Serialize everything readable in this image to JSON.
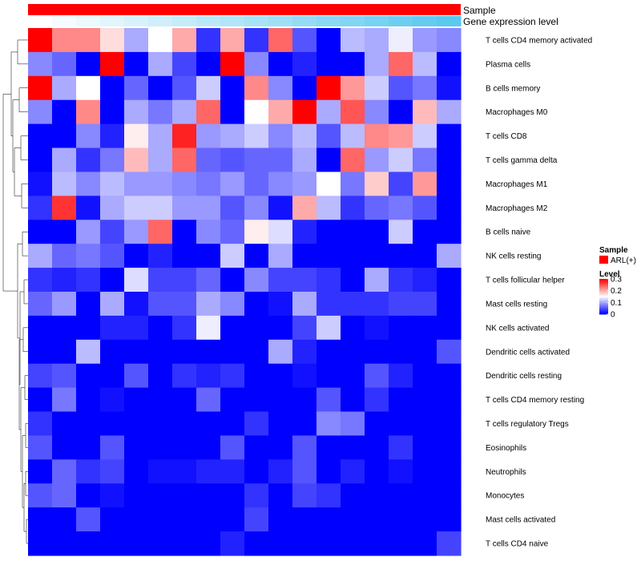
{
  "chart_data": {
    "type": "heatmap",
    "annotation_tracks": [
      {
        "name": "Sample",
        "color": "#ff0000"
      },
      {
        "name": "Gene expression level",
        "gradient": [
          "#ffffff",
          "#5bc8ef"
        ]
      }
    ],
    "rows": [
      "T cells CD4 memory activated",
      "Plasma cells",
      "B cells memory",
      "Macrophages M0",
      "T cells CD8",
      "T cells gamma delta",
      "Macrophages M1",
      "Macrophages M2",
      "B cells naive",
      "NK cells resting",
      "T cells follicular helper",
      "Mast cells resting",
      "NK cells activated",
      "Dendritic cells activated",
      "Dendritic cells resting",
      "T cells CD4 memory resting",
      "T cells regulatory  Tregs",
      "Eosinophils",
      "Neutrophils",
      "Monocytes",
      "Mast cells activated",
      "T cells CD4 naive"
    ],
    "n_columns": 18,
    "values": [
      [
        0.3,
        0.22,
        0.22,
        0.17,
        0.1,
        0.15,
        0.2,
        0.03,
        0.2,
        0.03,
        0.24,
        0.05,
        0.0,
        0.11,
        0.1,
        0.14,
        0.09,
        0.08
      ],
      [
        0.08,
        0.06,
        0.0,
        0.3,
        0.0,
        0.1,
        0.04,
        0.0,
        0.3,
        0.08,
        0.0,
        0.02,
        0.0,
        0.0,
        0.1,
        0.24,
        0.11,
        0.0
      ],
      [
        0.3,
        0.1,
        0.15,
        0.0,
        0.06,
        0.0,
        0.05,
        0.12,
        0.0,
        0.22,
        0.08,
        0.0,
        0.3,
        0.21,
        0.12,
        0.05,
        0.07,
        0.01
      ],
      [
        0.08,
        0.0,
        0.22,
        0.0,
        0.1,
        0.07,
        0.1,
        0.24,
        0.0,
        0.15,
        0.2,
        0.3,
        0.1,
        0.25,
        0.08,
        0.0,
        0.19,
        0.1
      ],
      [
        0.0,
        0.0,
        0.08,
        0.02,
        0.16,
        0.1,
        0.28,
        0.09,
        0.1,
        0.12,
        0.08,
        0.11,
        0.05,
        0.11,
        0.22,
        0.21,
        0.12,
        0.0
      ],
      [
        0.0,
        0.1,
        0.03,
        0.07,
        0.19,
        0.1,
        0.24,
        0.06,
        0.05,
        0.06,
        0.06,
        0.1,
        0.0,
        0.24,
        0.09,
        0.12,
        0.07,
        0.0
      ],
      [
        0.01,
        0.11,
        0.08,
        0.11,
        0.09,
        0.09,
        0.08,
        0.07,
        0.09,
        0.06,
        0.08,
        0.09,
        0.15,
        0.07,
        0.18,
        0.04,
        0.21,
        0.0
      ],
      [
        0.03,
        0.27,
        0.01,
        0.1,
        0.12,
        0.12,
        0.09,
        0.09,
        0.05,
        0.08,
        0.01,
        0.2,
        0.11,
        0.03,
        0.06,
        0.07,
        0.05,
        0.0
      ],
      [
        0.0,
        0.0,
        0.09,
        0.04,
        0.09,
        0.24,
        0.0,
        0.08,
        0.06,
        0.16,
        0.13,
        0.02,
        0.0,
        0.0,
        0.0,
        0.12,
        0.0,
        0.0
      ],
      [
        0.1,
        0.06,
        0.07,
        0.05,
        0.0,
        0.02,
        0.0,
        0.0,
        0.12,
        0.0,
        0.1,
        0.0,
        0.0,
        0.0,
        0.0,
        0.0,
        0.0,
        0.1
      ],
      [
        0.03,
        0.02,
        0.03,
        0.0,
        0.13,
        0.04,
        0.04,
        0.06,
        0.0,
        0.08,
        0.04,
        0.04,
        0.03,
        0.0,
        0.1,
        0.03,
        0.02,
        0.0
      ],
      [
        0.06,
        0.09,
        0.0,
        0.1,
        0.01,
        0.05,
        0.05,
        0.1,
        0.08,
        0.0,
        0.01,
        0.1,
        0.03,
        0.03,
        0.03,
        0.04,
        0.04,
        0.0
      ],
      [
        0.0,
        0.0,
        0.0,
        0.02,
        0.02,
        0.0,
        0.03,
        0.14,
        0.0,
        0.0,
        0.0,
        0.04,
        0.12,
        0.0,
        0.01,
        0.0,
        0.0,
        0.0
      ],
      [
        0.0,
        0.0,
        0.11,
        0.0,
        0.0,
        0.0,
        0.0,
        0.0,
        0.0,
        0.0,
        0.1,
        0.02,
        0.0,
        0.0,
        0.0,
        0.0,
        0.0,
        0.05
      ],
      [
        0.04,
        0.05,
        0.0,
        0.0,
        0.05,
        0.0,
        0.03,
        0.02,
        0.03,
        0.0,
        0.0,
        0.01,
        0.0,
        0.0,
        0.05,
        0.02,
        0.0,
        0.0
      ],
      [
        0.0,
        0.07,
        0.0,
        0.01,
        0.0,
        0.0,
        0.0,
        0.06,
        0.0,
        0.0,
        0.0,
        0.0,
        0.05,
        0.0,
        0.03,
        0.0,
        0.0,
        0.0
      ],
      [
        0.03,
        0.0,
        0.0,
        0.0,
        0.0,
        0.0,
        0.0,
        0.0,
        0.0,
        0.03,
        0.0,
        0.0,
        0.08,
        0.07,
        0.0,
        0.0,
        0.0,
        0.0
      ],
      [
        0.05,
        0.0,
        0.0,
        0.05,
        0.0,
        0.0,
        0.0,
        0.0,
        0.05,
        0.0,
        0.0,
        0.05,
        0.0,
        0.0,
        0.0,
        0.03,
        0.0,
        0.0
      ],
      [
        0.0,
        0.06,
        0.03,
        0.04,
        0.0,
        0.01,
        0.01,
        0.02,
        0.02,
        0.0,
        0.02,
        0.05,
        0.0,
        0.02,
        0.0,
        0.01,
        0.0,
        0.0
      ],
      [
        0.05,
        0.06,
        0.0,
        0.01,
        0.0,
        0.0,
        0.0,
        0.0,
        0.0,
        0.03,
        0.0,
        0.04,
        0.03,
        0.0,
        0.0,
        0.0,
        0.0,
        0.0
      ],
      [
        0.0,
        0.0,
        0.05,
        0.0,
        0.0,
        0.0,
        0.0,
        0.0,
        0.0,
        0.04,
        0.0,
        0.0,
        0.0,
        0.0,
        0.0,
        0.0,
        0.0,
        0.0
      ],
      [
        0.0,
        0.0,
        0.0,
        0.0,
        0.0,
        0.0,
        0.0,
        0.0,
        0.02,
        0.0,
        0.0,
        0.0,
        0.0,
        0.0,
        0.0,
        0.0,
        0.0,
        0.04
      ]
    ],
    "color_scale": {
      "min": 0,
      "mid": 0.15,
      "max": 0.3,
      "low": "#0000ff",
      "mid_color": "#ffffff",
      "high": "#ff0000"
    },
    "legend": {
      "sample_title": "Sample",
      "sample_entry": "ARL(+)",
      "sample_color": "#ff0000",
      "level_title": "Level",
      "level_ticks": [
        "0.3",
        "0.2",
        "0.1",
        "0"
      ],
      "level_tick_values": [
        0.3,
        0.2,
        0.1,
        0
      ]
    }
  }
}
